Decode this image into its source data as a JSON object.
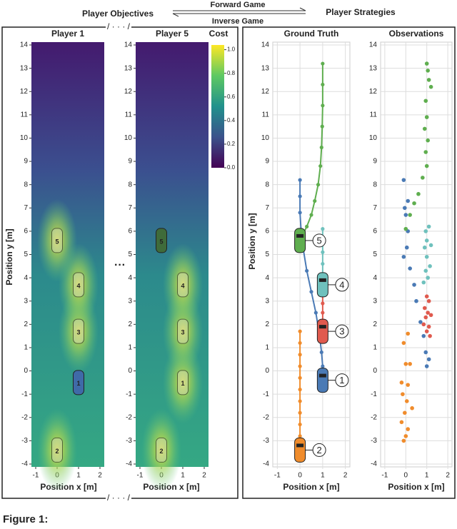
{
  "header": {
    "left": "Player Objectives",
    "right": "Player Strategies",
    "forward": "Forward Game",
    "inverse": "Inverse Game"
  },
  "left_panel": {
    "xlabel": "Position x [m]",
    "ylabel": "Position y [m]"
  },
  "right_panel": {
    "xlabel": "Position x [m]",
    "ylabel": "Position y [m]"
  },
  "colorbar": {
    "title": "Cost",
    "lim": [
      0,
      1.04
    ],
    "ticks": [
      {
        "value": 0,
        "label": "0.0"
      },
      {
        "value": 0.2,
        "label": "0.2"
      },
      {
        "value": 0.4,
        "label": "0.4"
      },
      {
        "value": 0.6,
        "label": "0.6"
      },
      {
        "value": 0.8,
        "label": "0.8"
      },
      {
        "value": 1,
        "label": "1.0"
      }
    ]
  },
  "chart_data": [
    {
      "type": "heatmap",
      "title": "Player 1",
      "xlim": [
        -1.2,
        2.2
      ],
      "ylim": [
        -4,
        14
      ],
      "xticks": [
        -1,
        0,
        1,
        2
      ],
      "yticks": [
        -4,
        -3,
        -2,
        -1,
        0,
        1,
        2,
        3,
        4,
        5,
        6,
        7,
        8,
        9,
        10,
        11,
        12,
        13,
        14
      ],
      "ego": "1",
      "ego_color": "#3f6aa8",
      "other_color": "#c9d9a8",
      "vehicles": [
        {
          "label": "1",
          "x": 1,
          "y": -0.5
        },
        {
          "label": "2",
          "x": 0,
          "y": -3.4
        },
        {
          "label": "3",
          "x": 1,
          "y": 1.7
        },
        {
          "label": "4",
          "x": 1,
          "y": 3.7
        },
        {
          "label": "5",
          "x": 0,
          "y": 5.6
        }
      ]
    },
    {
      "type": "heatmap",
      "title": "Player 5",
      "xlim": [
        -1.2,
        2.2
      ],
      "ylim": [
        -4,
        14
      ],
      "xticks": [
        -1,
        0,
        1,
        2
      ],
      "yticks": [
        -4,
        -3,
        -2,
        -1,
        0,
        1,
        2,
        3,
        4,
        5,
        6,
        7,
        8,
        9,
        10,
        11,
        12,
        13,
        14
      ],
      "ego": "5",
      "ego_color": "#3f6b3a",
      "other_color": "#c9d9a8",
      "vehicles": [
        {
          "label": "5",
          "x": 0,
          "y": 5.6
        },
        {
          "label": "1",
          "x": 1,
          "y": -0.5
        },
        {
          "label": "2",
          "x": 0,
          "y": -3.4
        },
        {
          "label": "3",
          "x": 1,
          "y": 1.7
        },
        {
          "label": "4",
          "x": 1,
          "y": 3.7
        }
      ]
    },
    {
      "type": "line",
      "title": "Ground Truth",
      "xlim": [
        -1.2,
        2.2
      ],
      "ylim": [
        -4,
        14
      ],
      "xticks": [
        -1,
        0,
        1,
        2
      ],
      "yticks": [
        -4,
        -3,
        -2,
        -1,
        0,
        1,
        2,
        3,
        4,
        5,
        6,
        7,
        8,
        9,
        10,
        11,
        12,
        13,
        14
      ],
      "grid": true,
      "series": [
        {
          "color": "#4a7ab5",
          "x": [
            0,
            0,
            0,
            0.05,
            0.15,
            0.3,
            0.5,
            0.7,
            0.85,
            0.95,
            1,
            1
          ],
          "y": [
            8.2,
            7.5,
            6.8,
            6,
            5.2,
            4.3,
            3.4,
            2.5,
            1.6,
            0.8,
            0.2,
            -0.4
          ]
        },
        {
          "color": "#f08c2c",
          "x": [
            0,
            0,
            0,
            0,
            0,
            0,
            0,
            0,
            0,
            0,
            0
          ],
          "y": [
            1.7,
            1.2,
            0.7,
            0.2,
            -0.3,
            -0.8,
            -1.3,
            -1.8,
            -2.3,
            -2.8,
            -3.4
          ]
        },
        {
          "color": "#e05a4e",
          "x": [
            1,
            1,
            1,
            1,
            1
          ],
          "y": [
            3.3,
            2.9,
            2.5,
            2.1,
            1.7
          ]
        },
        {
          "color": "#6fc1bd",
          "x": [
            1,
            1,
            1,
            1,
            1,
            1
          ],
          "y": [
            6.1,
            5.6,
            5.1,
            4.6,
            4.1,
            3.7
          ]
        },
        {
          "color": "#5fae4f",
          "x": [
            1,
            1,
            1,
            0.98,
            0.95,
            0.9,
            0.8,
            0.65,
            0.5,
            0.3,
            0.1,
            0
          ],
          "y": [
            13.2,
            12.3,
            11.4,
            10.5,
            9.6,
            8.8,
            8,
            7.3,
            6.7,
            6.2,
            5.8,
            5.6
          ]
        }
      ],
      "vehicles": [
        {
          "label": "1",
          "x": 1,
          "y": -0.4,
          "color": "#4a7ab5"
        },
        {
          "label": "2",
          "x": 0,
          "y": -3.4,
          "color": "#f08c2c"
        },
        {
          "label": "3",
          "x": 1,
          "y": 1.7,
          "color": "#e05a4e"
        },
        {
          "label": "4",
          "x": 1,
          "y": 3.7,
          "color": "#6fc1bd"
        },
        {
          "label": "5",
          "x": 0,
          "y": 5.6,
          "color": "#5fae4f"
        }
      ]
    },
    {
      "type": "scatter",
      "title": "Observations",
      "xlim": [
        -1.2,
        2.2
      ],
      "ylim": [
        -4,
        14
      ],
      "xticks": [
        -1,
        0,
        1,
        2
      ],
      "yticks": [
        -4,
        -3,
        -2,
        -1,
        0,
        1,
        2,
        3,
        4,
        5,
        6,
        7,
        8,
        9,
        10,
        11,
        12,
        13,
        14
      ],
      "grid": true,
      "series": [
        {
          "color": "#4a7ab5",
          "x": [
            -0.1,
            0.1,
            -0.05,
            0,
            0.1,
            0.05,
            -0.1,
            0.2,
            0.4,
            0.5,
            0.7,
            0.85,
            0.95,
            1.1,
            1
          ],
          "y": [
            8.2,
            7.3,
            7,
            6.7,
            6,
            5.3,
            4.9,
            4.4,
            3.7,
            3,
            2.1,
            1.5,
            0.8,
            0.5,
            0.2
          ]
        },
        {
          "color": "#f08c2c",
          "x": [
            0.1,
            -0.1,
            0,
            0.2,
            -0.2,
            0.1,
            -0.15,
            0.05,
            0.3,
            -0.05,
            -0.2,
            0.1,
            0,
            -0.1
          ],
          "y": [
            1.6,
            1.2,
            0.3,
            0.3,
            -0.5,
            -0.6,
            -1,
            -1.3,
            -1.6,
            -1.8,
            -2.2,
            -2.5,
            -2.8,
            -3
          ]
        },
        {
          "color": "#e05a4e",
          "x": [
            1,
            1.1,
            0.9,
            1.05,
            0.95,
            1.2,
            0.85,
            1.1,
            1,
            1.15
          ],
          "y": [
            3.2,
            3,
            2.7,
            2.5,
            2.3,
            2.4,
            2,
            1.9,
            1.7,
            1.5
          ]
        },
        {
          "color": "#6fc1bd",
          "x": [
            1.1,
            0.95,
            1,
            1.2,
            0.9,
            1,
            1.15,
            0.95,
            1.05,
            0.85
          ],
          "y": [
            6.2,
            6,
            5.6,
            5.4,
            5.3,
            4.9,
            4.5,
            4.3,
            4,
            3.8
          ]
        },
        {
          "color": "#5fae4f",
          "x": [
            1,
            1.05,
            1.1,
            1.2,
            0.95,
            1,
            0.9,
            1.05,
            0.95,
            1,
            0.8,
            0.6,
            0.4,
            0.2,
            0
          ],
          "y": [
            13.2,
            12.9,
            12.5,
            12.2,
            11.6,
            10.9,
            10.4,
            9.9,
            9.4,
            8.8,
            8.3,
            7.6,
            7.2,
            6.7,
            6.1
          ]
        }
      ]
    }
  ],
  "caption": "Figure 1:"
}
